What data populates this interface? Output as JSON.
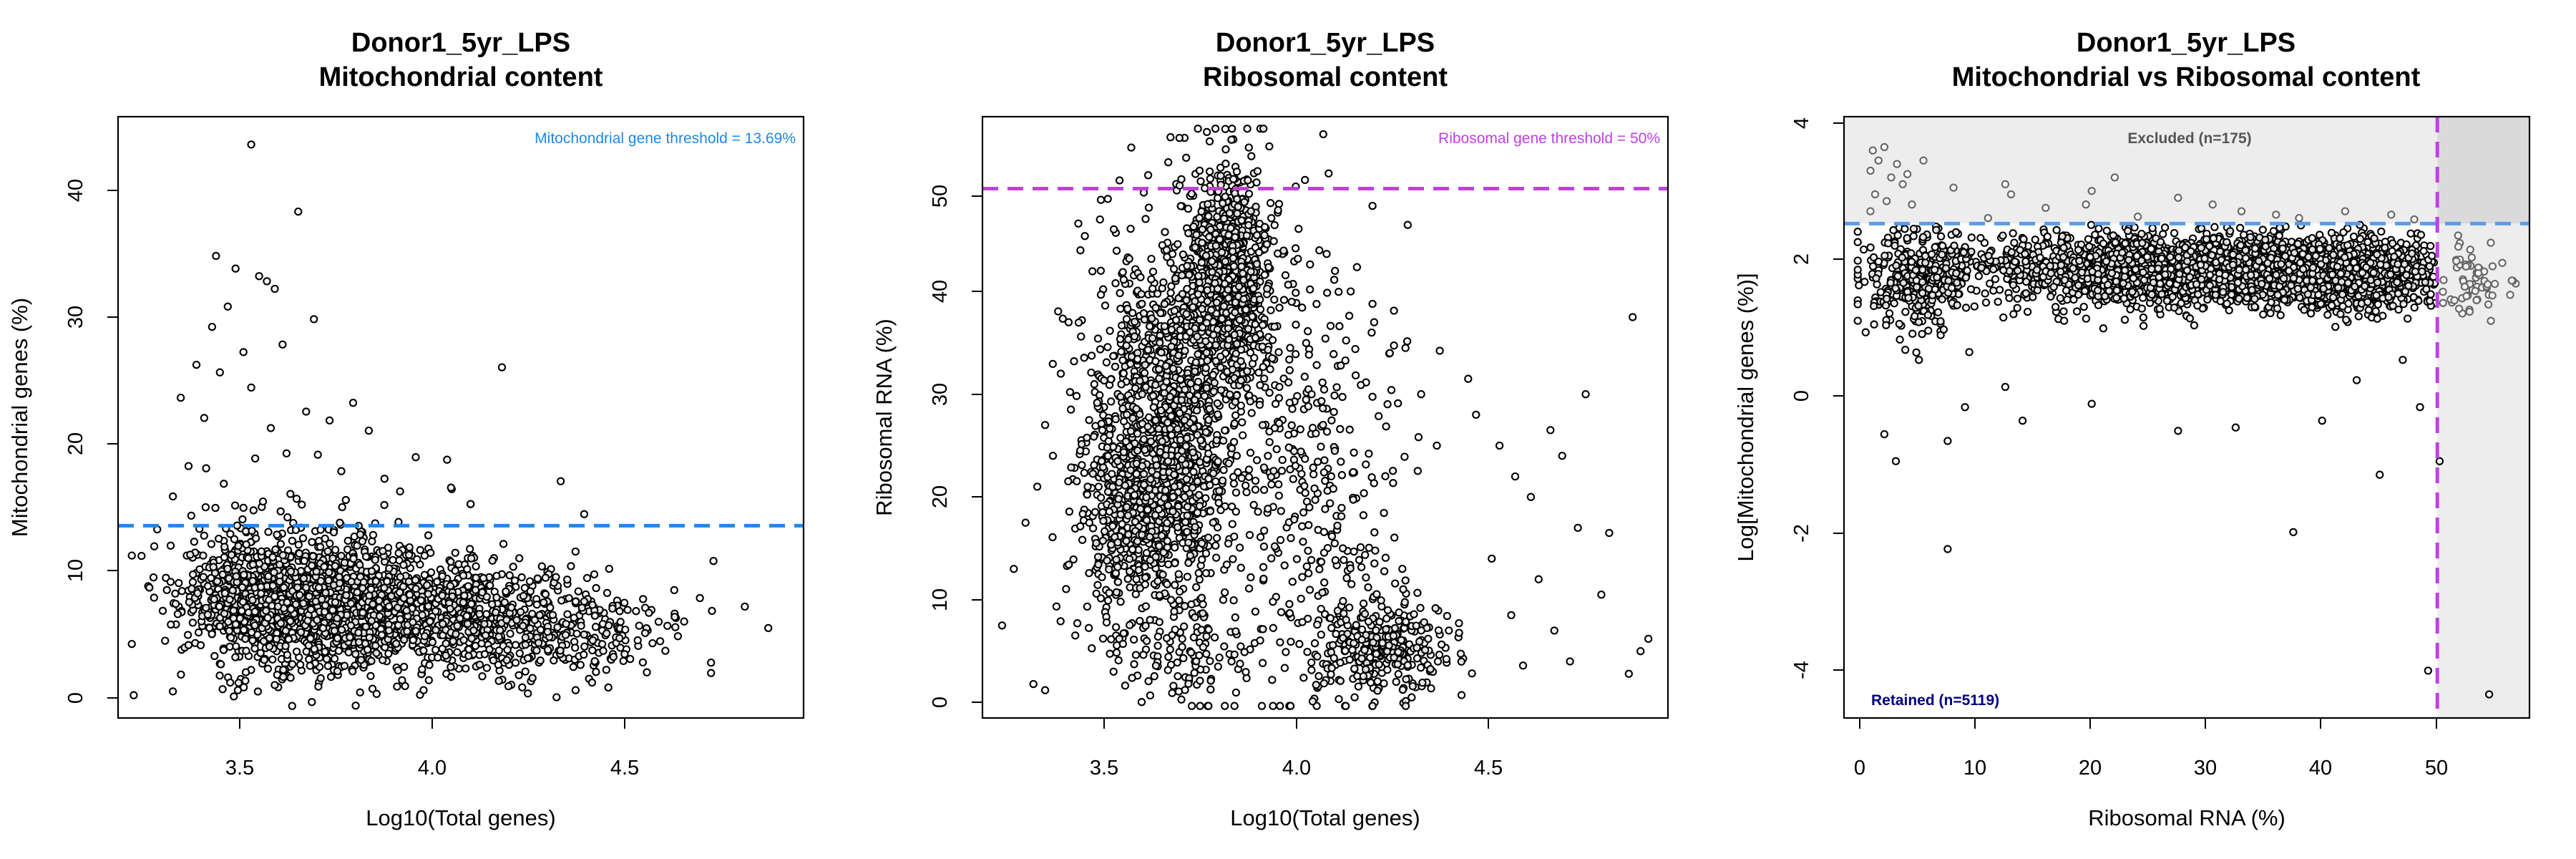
{
  "chart_data": [
    {
      "id": "mito",
      "type": "scatter",
      "title": "Donor1_5yr_LPS",
      "subtitle": "Mitochondrial content",
      "xlabel": "Log10(Total genes)",
      "ylabel": "Mitochondrial genes (%)",
      "xlim": [
        3.2,
        4.95
      ],
      "ylim": [
        -1.5,
        46
      ],
      "xticks": [
        "3.5",
        "4.0",
        "4.5"
      ],
      "yticks": [
        "0",
        "10",
        "20",
        "30",
        "40"
      ],
      "grid": false,
      "threshold": {
        "axis": "y",
        "value": 13.69,
        "color": "#1E88E5",
        "label": "Mitochondrial gene threshold = 13.69%"
      },
      "point_color": "#000000",
      "points": [
        [
          3.54,
          43.8
        ],
        [
          3.66,
          38.5
        ],
        [
          3.45,
          35.0
        ],
        [
          3.5,
          34.0
        ],
        [
          3.56,
          33.4
        ],
        [
          3.58,
          33.0
        ],
        [
          3.6,
          32.4
        ],
        [
          3.48,
          31.0
        ],
        [
          3.7,
          30.0
        ],
        [
          3.44,
          29.4
        ],
        [
          3.62,
          28.0
        ],
        [
          3.52,
          27.4
        ],
        [
          3.4,
          26.4
        ],
        [
          4.18,
          26.2
        ],
        [
          3.46,
          25.8
        ],
        [
          3.54,
          24.6
        ],
        [
          3.36,
          23.8
        ],
        [
          3.8,
          23.4
        ],
        [
          3.68,
          22.7
        ],
        [
          3.42,
          22.2
        ],
        [
          3.74,
          22.0
        ],
        [
          3.59,
          21.4
        ],
        [
          3.84,
          21.2
        ],
        [
          3.63,
          19.4
        ],
        [
          3.71,
          19.3
        ],
        [
          3.55,
          19.0
        ],
        [
          3.96,
          19.1
        ],
        [
          4.04,
          18.9
        ],
        [
          3.38,
          18.4
        ],
        [
          3.77,
          18.0
        ],
        [
          3.88,
          17.4
        ],
        [
          3.47,
          17.0
        ],
        [
          4.33,
          17.2
        ],
        [
          4.05,
          16.7
        ],
        [
          3.92,
          16.4
        ],
        [
          3.34,
          16.0
        ],
        [
          3.64,
          16.2
        ],
        [
          3.57,
          15.6
        ],
        [
          3.52,
          15.1
        ],
        [
          4.1,
          15.4
        ],
        [
          3.3,
          13.4
        ],
        [
          3.26,
          11.3
        ],
        [
          3.24,
          0.3
        ],
        [
          3.34,
          0.6
        ],
        [
          3.32,
          4.6
        ],
        [
          3.28,
          8.8
        ],
        [
          4.39,
          14.6
        ],
        [
          4.72,
          10.9
        ],
        [
          4.86,
          5.6
        ],
        [
          4.8,
          7.3
        ],
        [
          4.62,
          8.6
        ],
        [
          4.58,
          6.1
        ],
        [
          4.49,
          3.0
        ],
        [
          4.55,
          2.1
        ],
        [
          4.41,
          1.3
        ],
        [
          4.48,
          4.8
        ],
        [
          3.98,
          0.7
        ],
        [
          3.86,
          0.4
        ],
        [
          3.76,
          2.2
        ],
        [
          3.6,
          1.1
        ]
      ],
      "clusters": [
        {
          "n": 1500,
          "cx": 3.72,
          "cy": 7.6,
          "sx": 0.16,
          "sy": 2.6,
          "seed": 11
        },
        {
          "n": 520,
          "cx": 4.12,
          "cy": 6.4,
          "sx": 0.12,
          "sy": 2.0,
          "seed": 12
        },
        {
          "n": 160,
          "cx": 4.38,
          "cy": 5.4,
          "sx": 0.13,
          "sy": 1.9,
          "seed": 13
        },
        {
          "n": 260,
          "cx": 3.52,
          "cy": 8.6,
          "sx": 0.08,
          "sy": 2.9,
          "seed": 14
        }
      ]
    },
    {
      "id": "ribo",
      "type": "scatter",
      "title": "Donor1_5yr_LPS",
      "subtitle": "Ribosomal content",
      "xlabel": "Log10(Total genes)",
      "ylabel": "Ribosomal RNA (%)",
      "xlim": [
        3.2,
        4.95
      ],
      "ylim": [
        -1.5,
        57
      ],
      "xticks": [
        "3.5",
        "4.0",
        "4.5"
      ],
      "yticks": [
        "0",
        "10",
        "20",
        "30",
        "40",
        "50"
      ],
      "grid": false,
      "threshold": {
        "axis": "y",
        "value": 50,
        "color": "#BF40E6",
        "label": "Ribosomal gene threshold = 50%"
      },
      "point_color": "#000000",
      "points": [
        [
          3.25,
          7.5
        ],
        [
          3.28,
          13.0
        ],
        [
          3.31,
          17.5
        ],
        [
          3.34,
          21.0
        ],
        [
          3.36,
          27.0
        ],
        [
          3.38,
          24.0
        ],
        [
          3.33,
          1.8
        ],
        [
          3.36,
          1.2
        ],
        [
          3.4,
          32.0
        ],
        [
          3.42,
          37.0
        ],
        [
          3.45,
          44.0
        ],
        [
          3.5,
          47.0
        ],
        [
          3.52,
          49.0
        ],
        [
          3.55,
          50.8
        ],
        [
          3.58,
          54.0
        ],
        [
          3.68,
          55.0
        ],
        [
          3.72,
          53.0
        ],
        [
          3.78,
          54.6
        ],
        [
          3.82,
          55.8
        ],
        [
          3.88,
          54.0
        ],
        [
          4.0,
          50.2
        ],
        [
          4.06,
          44.0
        ],
        [
          4.1,
          42.0
        ],
        [
          4.14,
          40.0
        ],
        [
          4.2,
          37.0
        ],
        [
          4.24,
          34.0
        ],
        [
          4.28,
          34.5
        ],
        [
          4.32,
          30.0
        ],
        [
          4.36,
          25.0
        ],
        [
          4.44,
          31.5
        ],
        [
          4.46,
          28.0
        ],
        [
          4.52,
          25.0
        ],
        [
          4.56,
          22.0
        ],
        [
          4.6,
          20.0
        ],
        [
          4.65,
          26.5
        ],
        [
          4.68,
          24.0
        ],
        [
          4.72,
          17.0
        ],
        [
          4.74,
          30.0
        ],
        [
          4.8,
          16.5
        ],
        [
          4.86,
          37.5
        ],
        [
          4.9,
          6.2
        ],
        [
          4.88,
          5.0
        ],
        [
          4.85,
          2.8
        ],
        [
          4.78,
          10.5
        ],
        [
          4.7,
          4.0
        ],
        [
          4.62,
          12.0
        ],
        [
          4.55,
          8.5
        ],
        [
          4.5,
          14.0
        ],
        [
          4.58,
          3.6
        ],
        [
          4.66,
          7.0
        ]
      ],
      "clusters": [
        {
          "n": 900,
          "cx": 3.83,
          "cy": 41.0,
          "sx": 0.055,
          "sy": 5.5,
          "seed": 21
        },
        {
          "n": 1200,
          "cx": 3.66,
          "cy": 27.0,
          "sx": 0.09,
          "sy": 8.5,
          "seed": 22
        },
        {
          "n": 400,
          "cx": 3.58,
          "cy": 18.0,
          "sx": 0.07,
          "sy": 4.5,
          "seed": 23
        },
        {
          "n": 350,
          "cx": 4.02,
          "cy": 22.0,
          "sx": 0.12,
          "sy": 10.5,
          "seed": 24
        },
        {
          "n": 300,
          "cx": 4.22,
          "cy": 5.2,
          "sx": 0.09,
          "sy": 2.6,
          "seed": 25
        },
        {
          "n": 120,
          "cx": 3.72,
          "cy": 4.5,
          "sx": 0.12,
          "sy": 2.5,
          "seed": 26
        }
      ]
    },
    {
      "id": "mito_vs_ribo",
      "type": "scatter",
      "title": "Donor1_5yr_LPS",
      "subtitle": "Mitochondrial vs Ribosomal content",
      "xlabel": "Ribosomal RNA (%)",
      "ylabel": "Log[Mitochondrial genes (%)]",
      "xlim": [
        -1.5,
        58
      ],
      "ylim": [
        -4.7,
        4.2
      ],
      "xticks": [
        "0",
        "10",
        "20",
        "30",
        "40",
        "50"
      ],
      "yticks": [
        "-4",
        "-2",
        "0",
        "2",
        "4"
      ],
      "grid": false,
      "x_threshold": {
        "value": 50,
        "color": "#BF40E6"
      },
      "y_threshold": {
        "value": 2.617,
        "color": "#5B9BEA"
      },
      "excluded_label": "Excluded (n=175)",
      "excluded_color": "#555555",
      "retained_label": "Retained (n=5119)",
      "retained_color": "#000080",
      "shade_color": "#EDEDED",
      "corner_shade_color": "#DADADA",
      "point_color": "#000000",
      "excluded_point_color": "#666666",
      "points": [
        [
          7.5,
          -2.2
        ],
        [
          9.0,
          -0.1
        ],
        [
          14.0,
          -0.3
        ],
        [
          20.0,
          -0.05
        ],
        [
          27.5,
          -0.45
        ],
        [
          32.5,
          -0.4
        ],
        [
          37.5,
          -1.95
        ],
        [
          45.0,
          -1.1
        ],
        [
          50.2,
          -0.9
        ],
        [
          49.2,
          -4.0
        ],
        [
          2.0,
          -0.5
        ],
        [
          3.0,
          -0.9
        ],
        [
          5.0,
          0.6
        ],
        [
          12.5,
          0.2
        ],
        [
          40.0,
          -0.3
        ],
        [
          43.0,
          0.3
        ],
        [
          47.0,
          0.6
        ],
        [
          54.5,
          -4.35
        ],
        [
          7.5,
          -0.6
        ],
        [
          48.5,
          -0.1
        ]
      ],
      "excluded_points": [
        [
          1.0,
          3.7
        ],
        [
          2.0,
          3.75
        ],
        [
          1.5,
          3.55
        ],
        [
          0.8,
          3.4
        ],
        [
          2.6,
          3.3
        ],
        [
          3.1,
          3.5
        ],
        [
          3.6,
          3.2
        ],
        [
          4.0,
          3.35
        ],
        [
          5.4,
          3.55
        ],
        [
          1.2,
          3.05
        ],
        [
          2.2,
          2.95
        ],
        [
          0.8,
          2.8
        ],
        [
          4.4,
          2.9
        ],
        [
          8.0,
          3.15
        ],
        [
          12.5,
          3.2
        ],
        [
          13.0,
          3.05
        ],
        [
          16.0,
          2.85
        ],
        [
          19.5,
          2.9
        ],
        [
          20.0,
          3.1
        ],
        [
          22.0,
          3.3
        ],
        [
          27.5,
          3.0
        ],
        [
          30.5,
          2.9
        ],
        [
          33.0,
          2.8
        ],
        [
          36.0,
          2.75
        ],
        [
          42.0,
          2.8
        ],
        [
          46.0,
          2.75
        ],
        [
          11.0,
          2.7
        ],
        [
          24.0,
          2.72
        ],
        [
          38.0,
          2.7
        ],
        [
          48.0,
          2.68
        ]
      ],
      "excluded_clusters": [
        {
          "n": 70,
          "cx": 53.0,
          "cy": 1.75,
          "sx": 1.4,
          "sy": 0.28,
          "seed": 31
        }
      ],
      "clusters": [
        {
          "n": 2400,
          "cx": 30.0,
          "cy": 1.95,
          "sx": 10.0,
          "sy": 0.26,
          "seed": 32
        },
        {
          "n": 700,
          "cx": 42.5,
          "cy": 1.85,
          "sx": 4.0,
          "sy": 0.24,
          "seed": 33
        },
        {
          "n": 350,
          "cx": 5.0,
          "cy": 1.8,
          "sx": 2.4,
          "sy": 0.38,
          "seed": 34
        }
      ]
    }
  ]
}
